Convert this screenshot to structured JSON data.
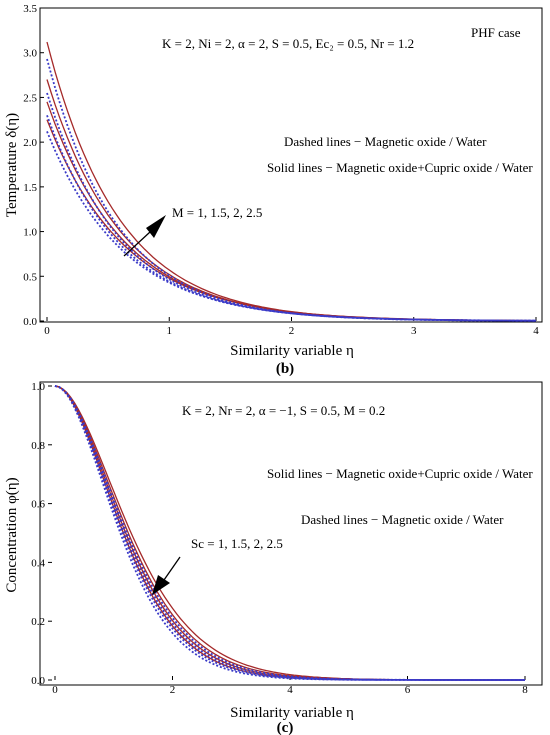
{
  "chart_data": [
    {
      "type": "line",
      "panel_label": "(b)",
      "xlabel": "Similarity variable η",
      "ylabel": "Temperature δ(η)",
      "xlim": [
        0,
        4
      ],
      "ylim": [
        0,
        3.5
      ],
      "xticks": [
        "0",
        "1",
        "2",
        "3",
        "4"
      ],
      "yticks": [
        "0.0",
        "0.5",
        "1.0",
        "1.5",
        "2.0",
        "2.5",
        "3.0",
        "3.5"
      ],
      "annotations": {
        "params": "K = 2,  Ni = 2,  α = 2, S = 0.5, Ec₂ = 0.5,  Nr = 1.2",
        "case": "PHF case",
        "dashed": "Dashed lines − Magnetic oxide / Water",
        "solid": "Solid lines − Magnetic oxide+Cupric oxide / Water",
        "arrow": "M = 1, 1.5, 2, 2.5"
      },
      "model": "exp",
      "series": [
        {
          "style": "solid",
          "group": "Magnetic oxide+Cupric oxide / Water",
          "M": 1,
          "y0": 2.25,
          "decay": 1.55
        },
        {
          "style": "solid",
          "group": "Magnetic oxide+Cupric oxide / Water",
          "M": 1.5,
          "y0": 2.45,
          "decay": 1.6
        },
        {
          "style": "solid",
          "group": "Magnetic oxide+Cupric oxide / Water",
          "M": 2,
          "y0": 2.7,
          "decay": 1.65
        },
        {
          "style": "solid",
          "group": "Magnetic oxide+Cupric oxide / Water",
          "M": 2.5,
          "y0": 3.12,
          "decay": 1.7
        },
        {
          "style": "dashed",
          "group": "Magnetic oxide / Water",
          "M": 1,
          "y0": 2.12,
          "decay": 1.6
        },
        {
          "style": "dashed",
          "group": "Magnetic oxide / Water",
          "M": 1.5,
          "y0": 2.3,
          "decay": 1.65
        },
        {
          "style": "dashed",
          "group": "Magnetic oxide / Water",
          "M": 2,
          "y0": 2.55,
          "decay": 1.7
        },
        {
          "style": "dashed",
          "group": "Magnetic oxide / Water",
          "M": 2.5,
          "y0": 2.93,
          "decay": 1.75
        }
      ],
      "colors": {
        "solid": "#a52a2a",
        "dashed": "#3a3ac8"
      }
    },
    {
      "type": "line",
      "panel_label": "(c)",
      "xlabel": "Similarity variable η",
      "ylabel": "Concentration φ(η)",
      "xlim": [
        0,
        8
      ],
      "ylim": [
        0,
        1.0
      ],
      "xticks": [
        "0",
        "2",
        "4",
        "6",
        "8"
      ],
      "yticks": [
        "0.0",
        "0.2",
        "0.4",
        "0.6",
        "0.8",
        "1.0"
      ],
      "annotations": {
        "params": "K = 2,  Nr = 2,  α = −1, S = 0.5,  M = 0.2",
        "solid": "Solid lines − Magnetic oxide+Cupric oxide / Water",
        "dashed": "Dashed lines − Magnetic oxide / Water",
        "arrow": "Sc = 1, 1.5, 2, 2.5"
      },
      "model": "sigmoid",
      "series": [
        {
          "style": "solid",
          "group": "Magnetic oxide+Cupric oxide / Water",
          "Sc": 1,
          "k": 0.6
        },
        {
          "style": "solid",
          "group": "Magnetic oxide+Cupric oxide / Water",
          "Sc": 1.5,
          "k": 0.64
        },
        {
          "style": "solid",
          "group": "Magnetic oxide+Cupric oxide / Water",
          "Sc": 2,
          "k": 0.68
        },
        {
          "style": "solid",
          "group": "Magnetic oxide+Cupric oxide / Water",
          "Sc": 2.5,
          "k": 0.72
        },
        {
          "style": "dashed",
          "group": "Magnetic oxide / Water",
          "Sc": 1,
          "k": 0.66
        },
        {
          "style": "dashed",
          "group": "Magnetic oxide / Water",
          "Sc": 1.5,
          "k": 0.7
        },
        {
          "style": "dashed",
          "group": "Magnetic oxide / Water",
          "Sc": 2,
          "k": 0.74
        },
        {
          "style": "dashed",
          "group": "Magnetic oxide / Water",
          "Sc": 2.5,
          "k": 0.78
        }
      ],
      "colors": {
        "solid": "#a52a2a",
        "dashed": "#3a3ac8"
      }
    }
  ]
}
